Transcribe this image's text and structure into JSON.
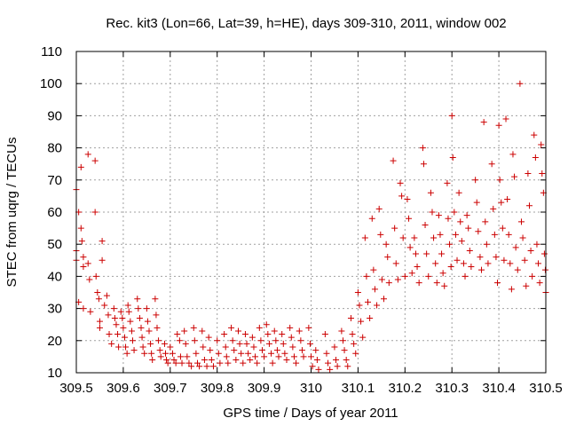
{
  "chart_data": {
    "type": "scatter",
    "title": "Rec. kit3 (Lon=66, Lat=39, h=HE), days 309-310, 2011, window 002",
    "xlabel": "GPS time / Days of year 2011",
    "ylabel": "STEC from uqrg / TECUs",
    "xlim": [
      309.5,
      310.5
    ],
    "ylim": [
      10,
      110
    ],
    "x_ticks": [
      309.5,
      309.6,
      309.7,
      309.8,
      309.9,
      310.0,
      310.1,
      310.2,
      310.3,
      310.4,
      310.5
    ],
    "x_tick_labels": [
      "309.5",
      "309.6",
      "309.7",
      "309.8",
      "309.9",
      "310",
      "310.1",
      "310.2",
      "310.3",
      "310.4",
      "310.5"
    ],
    "y_ticks": [
      10,
      20,
      30,
      40,
      50,
      60,
      70,
      80,
      90,
      100,
      110
    ],
    "y_tick_labels": [
      "10",
      "20",
      "30",
      "40",
      "50",
      "60",
      "70",
      "80",
      "90",
      "100",
      "110"
    ],
    "grid": true,
    "marker": "+",
    "color": "#cc0000",
    "series": [
      {
        "name": "STEC",
        "points": [
          [
            309.5,
            67
          ],
          [
            309.5,
            48
          ],
          [
            309.5,
            45
          ],
          [
            309.505,
            60
          ],
          [
            309.505,
            32
          ],
          [
            309.51,
            74
          ],
          [
            309.51,
            55
          ],
          [
            309.512,
            51
          ],
          [
            309.515,
            46
          ],
          [
            309.515,
            43
          ],
          [
            309.515,
            30
          ],
          [
            309.525,
            78
          ],
          [
            309.525,
            44
          ],
          [
            309.528,
            39
          ],
          [
            309.53,
            29
          ],
          [
            309.54,
            76
          ],
          [
            309.54,
            60
          ],
          [
            309.542,
            40
          ],
          [
            309.545,
            35
          ],
          [
            309.548,
            33
          ],
          [
            309.55,
            26
          ],
          [
            309.55,
            24
          ],
          [
            309.555,
            51
          ],
          [
            309.555,
            45
          ],
          [
            309.56,
            31
          ],
          [
            309.565,
            34
          ],
          [
            309.568,
            28
          ],
          [
            309.57,
            22
          ],
          [
            309.575,
            19
          ],
          [
            309.58,
            30
          ],
          [
            309.582,
            27
          ],
          [
            309.585,
            25
          ],
          [
            309.588,
            22
          ],
          [
            309.59,
            18
          ],
          [
            309.595,
            29
          ],
          [
            309.598,
            27
          ],
          [
            309.6,
            24
          ],
          [
            309.603,
            21
          ],
          [
            309.605,
            18
          ],
          [
            309.608,
            16
          ],
          [
            309.61,
            31
          ],
          [
            309.612,
            29
          ],
          [
            309.615,
            26
          ],
          [
            309.618,
            23
          ],
          [
            309.62,
            20
          ],
          [
            309.623,
            17
          ],
          [
            309.63,
            33
          ],
          [
            309.632,
            30
          ],
          [
            309.635,
            27
          ],
          [
            309.638,
            24
          ],
          [
            309.64,
            21
          ],
          [
            309.642,
            18
          ],
          [
            309.645,
            16
          ],
          [
            309.65,
            30
          ],
          [
            309.652,
            26
          ],
          [
            309.655,
            23
          ],
          [
            309.658,
            19
          ],
          [
            309.66,
            16
          ],
          [
            309.662,
            14
          ],
          [
            309.668,
            33
          ],
          [
            309.67,
            28
          ],
          [
            309.672,
            24
          ],
          [
            309.675,
            20
          ],
          [
            309.678,
            17
          ],
          [
            309.68,
            15
          ],
          [
            309.688,
            19
          ],
          [
            309.69,
            16
          ],
          [
            309.692,
            14
          ],
          [
            309.695,
            13
          ],
          [
            309.7,
            18
          ],
          [
            309.705,
            16
          ],
          [
            309.708,
            14
          ],
          [
            309.712,
            13
          ],
          [
            309.715,
            22
          ],
          [
            309.72,
            20
          ],
          [
            309.722,
            15
          ],
          [
            309.725,
            13
          ],
          [
            309.73,
            23
          ],
          [
            309.733,
            19
          ],
          [
            309.736,
            15
          ],
          [
            309.74,
            13
          ],
          [
            309.745,
            12
          ],
          [
            309.75,
            24
          ],
          [
            309.752,
            20
          ],
          [
            309.755,
            16
          ],
          [
            309.758,
            13
          ],
          [
            309.762,
            12
          ],
          [
            309.768,
            23
          ],
          [
            309.77,
            18
          ],
          [
            309.773,
            14
          ],
          [
            309.778,
            12
          ],
          [
            309.782,
            21
          ],
          [
            309.785,
            17
          ],
          [
            309.788,
            14
          ],
          [
            309.792,
            12
          ],
          [
            309.8,
            20
          ],
          [
            309.803,
            16
          ],
          [
            309.806,
            13
          ],
          [
            309.815,
            22
          ],
          [
            309.818,
            18
          ],
          [
            309.82,
            15
          ],
          [
            309.823,
            13
          ],
          [
            309.83,
            24
          ],
          [
            309.833,
            20
          ],
          [
            309.836,
            17
          ],
          [
            309.84,
            14
          ],
          [
            309.845,
            23
          ],
          [
            309.848,
            19
          ],
          [
            309.851,
            16
          ],
          [
            309.855,
            13
          ],
          [
            309.86,
            22
          ],
          [
            309.863,
            19
          ],
          [
            309.866,
            16
          ],
          [
            309.87,
            14
          ],
          [
            309.875,
            21
          ],
          [
            309.878,
            18
          ],
          [
            309.881,
            15
          ],
          [
            309.885,
            13
          ],
          [
            309.89,
            24
          ],
          [
            309.893,
            20
          ],
          [
            309.896,
            17
          ],
          [
            309.9,
            15
          ],
          [
            309.905,
            25
          ],
          [
            309.908,
            22
          ],
          [
            309.911,
            19
          ],
          [
            309.915,
            16
          ],
          [
            309.918,
            13
          ],
          [
            309.922,
            23
          ],
          [
            309.925,
            20
          ],
          [
            309.928,
            17
          ],
          [
            309.931,
            15
          ],
          [
            309.938,
            22
          ],
          [
            309.941,
            19
          ],
          [
            309.944,
            16
          ],
          [
            309.948,
            14
          ],
          [
            309.955,
            24
          ],
          [
            309.958,
            21
          ],
          [
            309.961,
            18
          ],
          [
            309.964,
            15
          ],
          [
            309.968,
            13
          ],
          [
            309.975,
            23
          ],
          [
            309.978,
            20
          ],
          [
            309.981,
            17
          ],
          [
            309.984,
            15
          ],
          [
            309.995,
            24
          ],
          [
            309.998,
            19
          ],
          [
            310.0,
            15
          ],
          [
            310.003,
            12
          ],
          [
            310.01,
            17
          ],
          [
            310.013,
            14
          ],
          [
            310.016,
            11
          ],
          [
            310.03,
            22
          ],
          [
            310.033,
            16
          ],
          [
            310.036,
            13
          ],
          [
            310.04,
            11
          ],
          [
            310.05,
            18
          ],
          [
            310.053,
            14
          ],
          [
            310.056,
            12
          ],
          [
            310.065,
            23
          ],
          [
            310.068,
            20
          ],
          [
            310.071,
            17
          ],
          [
            310.075,
            14
          ],
          [
            310.078,
            12
          ],
          [
            310.085,
            27
          ],
          [
            310.088,
            22
          ],
          [
            310.091,
            19
          ],
          [
            310.095,
            16
          ],
          [
            310.1,
            35
          ],
          [
            310.103,
            31
          ],
          [
            310.106,
            26
          ],
          [
            310.11,
            21
          ],
          [
            310.115,
            52
          ],
          [
            310.118,
            40
          ],
          [
            310.121,
            32
          ],
          [
            310.125,
            27
          ],
          [
            310.13,
            58
          ],
          [
            310.133,
            42
          ],
          [
            310.136,
            36
          ],
          [
            310.14,
            31
          ],
          [
            310.145,
            61
          ],
          [
            310.148,
            53
          ],
          [
            310.151,
            39
          ],
          [
            310.155,
            33
          ],
          [
            310.16,
            50
          ],
          [
            310.163,
            46
          ],
          [
            310.166,
            38
          ],
          [
            310.175,
            76
          ],
          [
            310.178,
            55
          ],
          [
            310.181,
            44
          ],
          [
            310.185,
            39
          ],
          [
            310.19,
            69
          ],
          [
            310.193,
            65
          ],
          [
            310.196,
            52
          ],
          [
            310.2,
            40
          ],
          [
            310.205,
            64
          ],
          [
            310.208,
            58
          ],
          [
            310.211,
            49
          ],
          [
            310.215,
            41
          ],
          [
            310.22,
            52
          ],
          [
            310.223,
            47
          ],
          [
            310.226,
            43
          ],
          [
            310.23,
            38
          ],
          [
            310.238,
            80
          ],
          [
            310.24,
            75
          ],
          [
            310.243,
            56
          ],
          [
            310.246,
            47
          ],
          [
            310.25,
            40
          ],
          [
            310.255,
            66
          ],
          [
            310.258,
            60
          ],
          [
            310.261,
            52
          ],
          [
            310.265,
            44
          ],
          [
            310.268,
            38
          ],
          [
            310.272,
            59
          ],
          [
            310.275,
            53
          ],
          [
            310.278,
            47
          ],
          [
            310.281,
            41
          ],
          [
            310.284,
            37
          ],
          [
            310.29,
            69
          ],
          [
            310.292,
            58
          ],
          [
            310.295,
            50
          ],
          [
            310.298,
            43
          ],
          [
            310.3,
            90
          ],
          [
            310.302,
            77
          ],
          [
            310.305,
            60
          ],
          [
            310.308,
            53
          ],
          [
            310.311,
            45
          ],
          [
            310.315,
            66
          ],
          [
            310.318,
            57
          ],
          [
            310.321,
            51
          ],
          [
            310.325,
            44
          ],
          [
            310.328,
            40
          ],
          [
            310.332,
            59
          ],
          [
            310.335,
            55
          ],
          [
            310.338,
            48
          ],
          [
            310.341,
            43
          ],
          [
            310.35,
            70
          ],
          [
            310.353,
            63
          ],
          [
            310.356,
            54
          ],
          [
            310.36,
            46
          ],
          [
            310.363,
            42
          ],
          [
            310.368,
            88
          ],
          [
            310.371,
            57
          ],
          [
            310.374,
            50
          ],
          [
            310.377,
            44
          ],
          [
            310.385,
            75
          ],
          [
            310.388,
            61
          ],
          [
            310.391,
            53
          ],
          [
            310.394,
            46
          ],
          [
            310.397,
            38
          ],
          [
            310.4,
            87
          ],
          [
            310.402,
            70
          ],
          [
            310.405,
            63
          ],
          [
            310.408,
            55
          ],
          [
            310.411,
            45
          ],
          [
            310.415,
            89
          ],
          [
            310.418,
            64
          ],
          [
            310.421,
            53
          ],
          [
            310.424,
            44
          ],
          [
            310.427,
            36
          ],
          [
            310.43,
            78
          ],
          [
            310.433,
            71
          ],
          [
            310.436,
            49
          ],
          [
            310.44,
            42
          ],
          [
            310.445,
            100
          ],
          [
            310.448,
            57
          ],
          [
            310.451,
            52
          ],
          [
            310.455,
            45
          ],
          [
            310.458,
            37
          ],
          [
            310.462,
            72
          ],
          [
            310.465,
            62
          ],
          [
            310.468,
            48
          ],
          [
            310.471,
            40
          ],
          [
            310.475,
            84
          ],
          [
            310.478,
            77
          ],
          [
            310.481,
            50
          ],
          [
            310.484,
            44
          ],
          [
            310.487,
            38
          ],
          [
            310.49,
            81
          ],
          [
            310.492,
            72
          ],
          [
            310.495,
            66
          ],
          [
            310.497,
            47
          ],
          [
            310.499,
            42
          ],
          [
            310.5,
            35
          ]
        ]
      }
    ]
  }
}
